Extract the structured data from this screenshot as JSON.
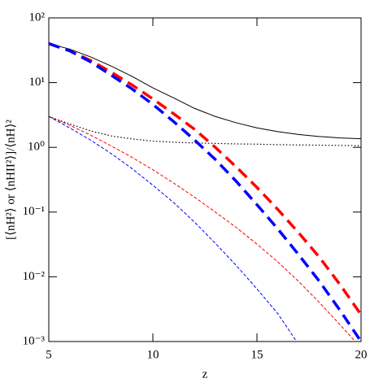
{
  "chart_data": {
    "type": "line",
    "xlabel": "z",
    "ylabel": "[⟨nH²⟩ or ⟨nHII²⟩]/⟨nH⟩²",
    "x": [
      5,
      6,
      7,
      8,
      9,
      10,
      11,
      12,
      13,
      14,
      15,
      16,
      17,
      18,
      19,
      20
    ],
    "xlim": [
      5,
      20
    ],
    "xticks": [
      5,
      10,
      15,
      20
    ],
    "ylim": [
      0.001,
      100
    ],
    "log_y": true,
    "yticks": [
      {
        "value": 0.001,
        "label": "10⁻³"
      },
      {
        "value": 0.01,
        "label": "10⁻²"
      },
      {
        "value": 0.1,
        "label": "10⁻¹"
      },
      {
        "value": 1,
        "label": "10⁰"
      },
      {
        "value": 10,
        "label": "10¹"
      },
      {
        "value": 100,
        "label": "10²"
      }
    ],
    "series": [
      {
        "color": "#000000",
        "line_style": "solid",
        "line_width": 1,
        "values": [
          40,
          33,
          25,
          18,
          12.5,
          8.3,
          5.8,
          4.0,
          3.0,
          2.4,
          2.0,
          1.75,
          1.58,
          1.47,
          1.4,
          1.36
        ]
      },
      {
        "color": "#000000",
        "line_style": "dotted",
        "line_width": 1.2,
        "values": [
          3.0,
          2.3,
          1.8,
          1.5,
          1.35,
          1.25,
          1.2,
          1.17,
          1.15,
          1.13,
          1.12,
          1.1,
          1.09,
          1.08,
          1.07,
          1.06
        ]
      },
      {
        "color": "#ff0000",
        "line_style": "dashed",
        "line_width": 3.5,
        "values": [
          40,
          31,
          22,
          14.5,
          9.2,
          5.6,
          3.3,
          1.9,
          1.0,
          0.5,
          0.24,
          0.11,
          0.048,
          0.02,
          0.0075,
          0.0026
        ]
      },
      {
        "color": "#0000ff",
        "line_style": "dashed",
        "line_width": 3.5,
        "values": [
          40,
          31,
          21,
          13,
          8,
          4.6,
          2.5,
          1.3,
          0.65,
          0.3,
          0.13,
          0.055,
          0.022,
          0.0085,
          0.003,
          0.001
        ]
      },
      {
        "color": "#ff0000",
        "line_style": "dashed",
        "line_width": 1,
        "values": [
          3.0,
          2.2,
          1.55,
          1.05,
          0.7,
          0.45,
          0.28,
          0.17,
          0.1,
          0.058,
          0.032,
          0.017,
          0.0085,
          0.004,
          0.0018,
          0.0008
        ]
      },
      {
        "color": "#0000ff",
        "line_style": "dashed",
        "line_width": 1,
        "values": [
          3.0,
          2.0,
          1.3,
          0.8,
          0.47,
          0.26,
          0.14,
          0.07,
          0.033,
          0.015,
          0.0065,
          0.0027,
          0.0009,
          null,
          null,
          null
        ]
      }
    ]
  }
}
